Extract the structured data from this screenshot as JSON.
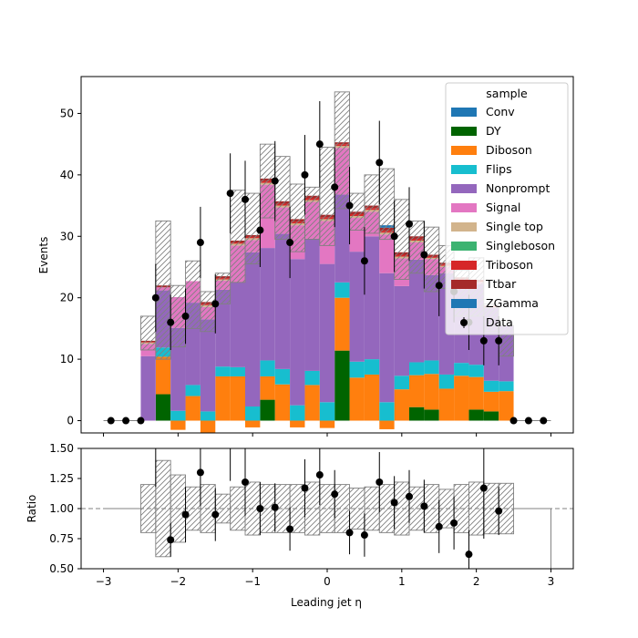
{
  "chart_data": [
    {
      "type": "bar",
      "subtype": "stacked-histogram",
      "xlabel": "",
      "ylabel": "Events",
      "xlim": [
        -3.3,
        3.3
      ],
      "ylim": [
        -2,
        56
      ],
      "yticks": [
        0,
        10,
        20,
        30,
        40,
        50
      ],
      "legend_title": "sample",
      "legend_position": "top-right",
      "bin_edges": [
        -2.5,
        -2.3,
        -2.1,
        -1.9,
        -1.7,
        -1.5,
        -1.3,
        -1.1,
        -0.9,
        -0.7,
        -0.5,
        -0.3,
        -0.1,
        0.1,
        0.3,
        0.5,
        0.7,
        0.9,
        1.1,
        1.3,
        1.5,
        1.7,
        1.9,
        2.1,
        2.3,
        2.5
      ],
      "series": [
        {
          "name": "Conv",
          "color": "#1f77b4",
          "values": [
            0,
            0,
            0,
            0,
            0,
            0,
            0,
            0,
            0,
            0,
            0,
            0,
            0,
            0,
            0,
            0,
            0,
            0,
            0,
            0,
            0,
            0,
            0,
            0,
            0
          ]
        },
        {
          "name": "DY",
          "color": "#006400",
          "values": [
            0,
            4.3,
            0,
            0,
            0,
            0,
            0,
            0,
            3.4,
            0,
            0,
            0,
            0,
            11.4,
            0,
            0,
            0,
            0,
            2.2,
            1.8,
            0,
            0,
            1.8,
            1.5,
            0
          ]
        },
        {
          "name": "Diboson",
          "color": "#ff7f0e",
          "values": [
            0,
            6.1,
            -1.5,
            4.0,
            -2.1,
            7.2,
            7.2,
            -1.1,
            3.8,
            5.9,
            -1.1,
            5.8,
            -1.2,
            8.6,
            7.0,
            7.5,
            -1.4,
            5.1,
            5.2,
            5.8,
            5.2,
            7.3,
            5.3,
            3.2,
            4.8
          ]
        },
        {
          "name": "Flips",
          "color": "#17becf",
          "values": [
            0,
            1.5,
            1.6,
            1.8,
            1.5,
            1.6,
            1.5,
            2.3,
            2.6,
            2.5,
            2.5,
            2.3,
            3.0,
            2.5,
            2.6,
            2.5,
            3.0,
            2.2,
            2.1,
            2.2,
            2.3,
            2.1,
            2.0,
            1.8,
            1.6
          ]
        },
        {
          "name": "Nonprompt",
          "color": "#9467bd",
          "values": [
            10.5,
            9.3,
            13.5,
            13.4,
            15.0,
            12.5,
            13.8,
            25.1,
            18.3,
            22.0,
            23.8,
            21.5,
            22.5,
            14.3,
            17.9,
            20.0,
            21.0,
            14.6,
            16.7,
            13.9,
            16.5,
            12.0,
            13.1,
            11.9,
            9.0
          ]
        },
        {
          "name": "Signal",
          "color": "#e377c2",
          "values": [
            2.0,
            0.5,
            5.0,
            3.5,
            2.0,
            1.5,
            6.0,
            2.0,
            10.3,
            4.3,
            5.5,
            6.0,
            7.0,
            7.6,
            5.5,
            4.0,
            6.3,
            4.5,
            2.8,
            2.6,
            1.0,
            1.3,
            0.3,
            0,
            0
          ]
        },
        {
          "name": "Single top",
          "color": "#d2b48c",
          "values": [
            0.2,
            0,
            0,
            0,
            0.3,
            0.2,
            0.3,
            0.3,
            0.3,
            0.3,
            0.3,
            0.3,
            0.3,
            0.3,
            0.3,
            0.3,
            0.3,
            0.3,
            0.3,
            0.2,
            0.2,
            0.2,
            0.1,
            0.1,
            0
          ]
        },
        {
          "name": "Singleboson",
          "color": "#3cb371",
          "values": [
            0,
            0,
            0,
            0,
            0,
            0,
            0,
            0,
            0,
            0,
            0,
            0,
            0,
            0,
            0,
            0,
            0,
            0,
            0,
            0,
            0,
            0,
            0,
            0,
            0
          ]
        },
        {
          "name": "Triboson",
          "color": "#d62728",
          "values": [
            0.1,
            0,
            0,
            0,
            0.2,
            0.2,
            0.2,
            0.2,
            0.3,
            0.3,
            0.3,
            0.3,
            0.3,
            0.3,
            0.3,
            0.3,
            0.3,
            0.3,
            0.3,
            0.2,
            0.2,
            0.2,
            0.1,
            0.1,
            0
          ]
        },
        {
          "name": "Ttbar",
          "color": "#a52a2a",
          "values": [
            0.2,
            0.3,
            0,
            0,
            0.3,
            0.3,
            0.3,
            0.3,
            0.4,
            0.4,
            0.4,
            0.4,
            0.4,
            0.3,
            0.4,
            0.4,
            0.5,
            0.4,
            0.4,
            0.3,
            0.3,
            0.2,
            0.2,
            0.1,
            0
          ]
        },
        {
          "name": "ZGamma",
          "color": "#1f77b4",
          "values": [
            0,
            0,
            0,
            0,
            0,
            0,
            0,
            0,
            0,
            0,
            0,
            0,
            0,
            0,
            0,
            0,
            0.4,
            0,
            0,
            0,
            0,
            0,
            0,
            0,
            0
          ]
        }
      ],
      "uncertainty_band": {
        "low": [
          11.5,
          10.0,
          12.0,
          15.0,
          14.5,
          19.0,
          22.5,
          25.5,
          33.0,
          29.5,
          27.5,
          29.5,
          28.5,
          34.5,
          31.0,
          30.5,
          29.5,
          23.0,
          24.0,
          21.0,
          21.5,
          17.0,
          17.0,
          14.5,
          10.5
        ],
        "high": [
          17.0,
          32.5,
          22.0,
          26.0,
          21.0,
          24.0,
          37.5,
          37.0,
          45.0,
          43.0,
          38.5,
          38.0,
          44.5,
          53.5,
          37.0,
          40.0,
          41.0,
          36.0,
          32.5,
          31.5,
          28.5,
          24.5,
          26.5,
          19.0,
          15.5
        ]
      },
      "data_points": {
        "name": "Data",
        "x": [
          -2.9,
          -2.7,
          -2.5,
          -2.3,
          -2.1,
          -1.9,
          -1.7,
          -1.5,
          -1.3,
          -1.1,
          -0.9,
          -0.7,
          -0.5,
          -0.3,
          -0.1,
          0.1,
          0.3,
          0.5,
          0.7,
          0.9,
          1.1,
          1.3,
          1.5,
          1.7,
          1.9,
          2.1,
          2.3,
          2.5,
          2.7,
          2.9
        ],
        "y": [
          0,
          0,
          0,
          20,
          16,
          17,
          29,
          19,
          37,
          36,
          31,
          39,
          29,
          40,
          45,
          38,
          35,
          26,
          42,
          30,
          32,
          27,
          22,
          21,
          16,
          13,
          13,
          0,
          0,
          0
        ],
        "err": [
          0,
          0,
          0,
          5.5,
          4.5,
          4.5,
          5.8,
          4.8,
          6.5,
          6.3,
          6,
          6.5,
          5.8,
          6.5,
          7,
          6.5,
          6.3,
          5.5,
          6.8,
          5.8,
          6,
          5.5,
          5,
          5,
          4.5,
          4,
          4,
          0,
          0,
          0
        ]
      }
    },
    {
      "type": "scatter",
      "subtype": "ratio",
      "xlabel": "Leading jet  η",
      "ylabel": "Ratio",
      "xlim": [
        -3.3,
        3.3
      ],
      "ylim": [
        0.5,
        1.5
      ],
      "xticks": [
        -3,
        -2,
        -1,
        0,
        1,
        2,
        3
      ],
      "yticks": [
        0.5,
        0.75,
        1.0,
        1.25,
        1.5
      ],
      "reference_line": 1.0,
      "uncertainty_band": {
        "low": [
          0.8,
          0.6,
          0.72,
          0.82,
          0.8,
          0.88,
          0.82,
          0.78,
          0.8,
          0.8,
          0.8,
          0.78,
          0.8,
          0.8,
          0.83,
          0.82,
          0.8,
          0.78,
          0.82,
          0.8,
          0.84,
          0.8,
          0.78,
          0.79,
          0.79
        ],
        "high": [
          1.2,
          1.4,
          1.28,
          1.18,
          1.2,
          1.12,
          1.18,
          1.22,
          1.2,
          1.2,
          1.2,
          1.22,
          1.2,
          1.2,
          1.17,
          1.18,
          1.2,
          1.22,
          1.18,
          1.2,
          1.16,
          1.2,
          1.22,
          1.21,
          1.21
        ]
      },
      "points": {
        "x": [
          -2.3,
          -2.1,
          -1.9,
          -1.7,
          -1.5,
          -1.3,
          -1.1,
          -0.9,
          -0.7,
          -0.5,
          -0.3,
          -0.1,
          0.1,
          0.3,
          0.5,
          0.7,
          0.9,
          1.1,
          1.3,
          1.5,
          1.7,
          1.9,
          2.1,
          2.3
        ],
        "y": [
          1.53,
          0.74,
          0.95,
          1.3,
          0.95,
          1.53,
          1.22,
          1.0,
          1.01,
          0.83,
          1.17,
          1.28,
          1.12,
          0.8,
          0.78,
          1.22,
          1.05,
          1.1,
          1.02,
          0.85,
          0.88,
          0.62,
          1.17,
          0.98
        ],
        "err": [
          0.35,
          0.14,
          0.23,
          0.28,
          0.22,
          0.3,
          0.28,
          0.22,
          0.2,
          0.18,
          0.24,
          0.25,
          0.2,
          0.18,
          0.18,
          0.25,
          0.22,
          0.22,
          0.22,
          0.22,
          0.22,
          0.2,
          0.42,
          0.2
        ]
      }
    }
  ]
}
